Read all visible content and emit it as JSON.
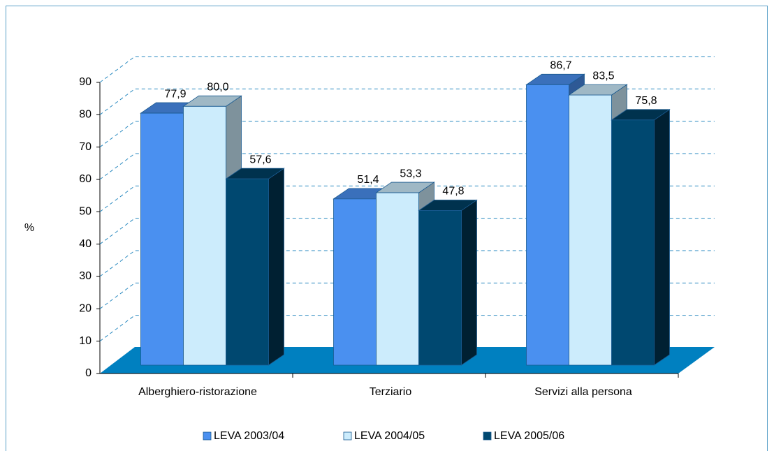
{
  "chart_data": {
    "type": "bar3d",
    "ylabel": "%",
    "categories": [
      "Alberghiero-ristorazione",
      "Terziario",
      "Servizi alla persona"
    ],
    "series": [
      {
        "name": "LEVA 2003/04",
        "color": "#4a90f0",
        "values": [
          77.9,
          51.4,
          86.7
        ],
        "value_labels": [
          "77,9",
          "51,4",
          "86,7"
        ]
      },
      {
        "name": "LEVA 2004/05",
        "color": "#ccecfc",
        "values": [
          80.0,
          53.3,
          83.5
        ],
        "value_labels": [
          "80,0",
          "53,3",
          "83,5"
        ]
      },
      {
        "name": "LEVA 2005/06",
        "color": "#004870",
        "values": [
          57.6,
          47.8,
          75.8
        ],
        "value_labels": [
          "57,6",
          "47,8",
          "75,8"
        ]
      }
    ],
    "ylim": [
      0,
      90
    ],
    "yticks": [
      0,
      10,
      20,
      30,
      40,
      50,
      60,
      70,
      80,
      90
    ],
    "grid": true,
    "legend": "bottom"
  }
}
